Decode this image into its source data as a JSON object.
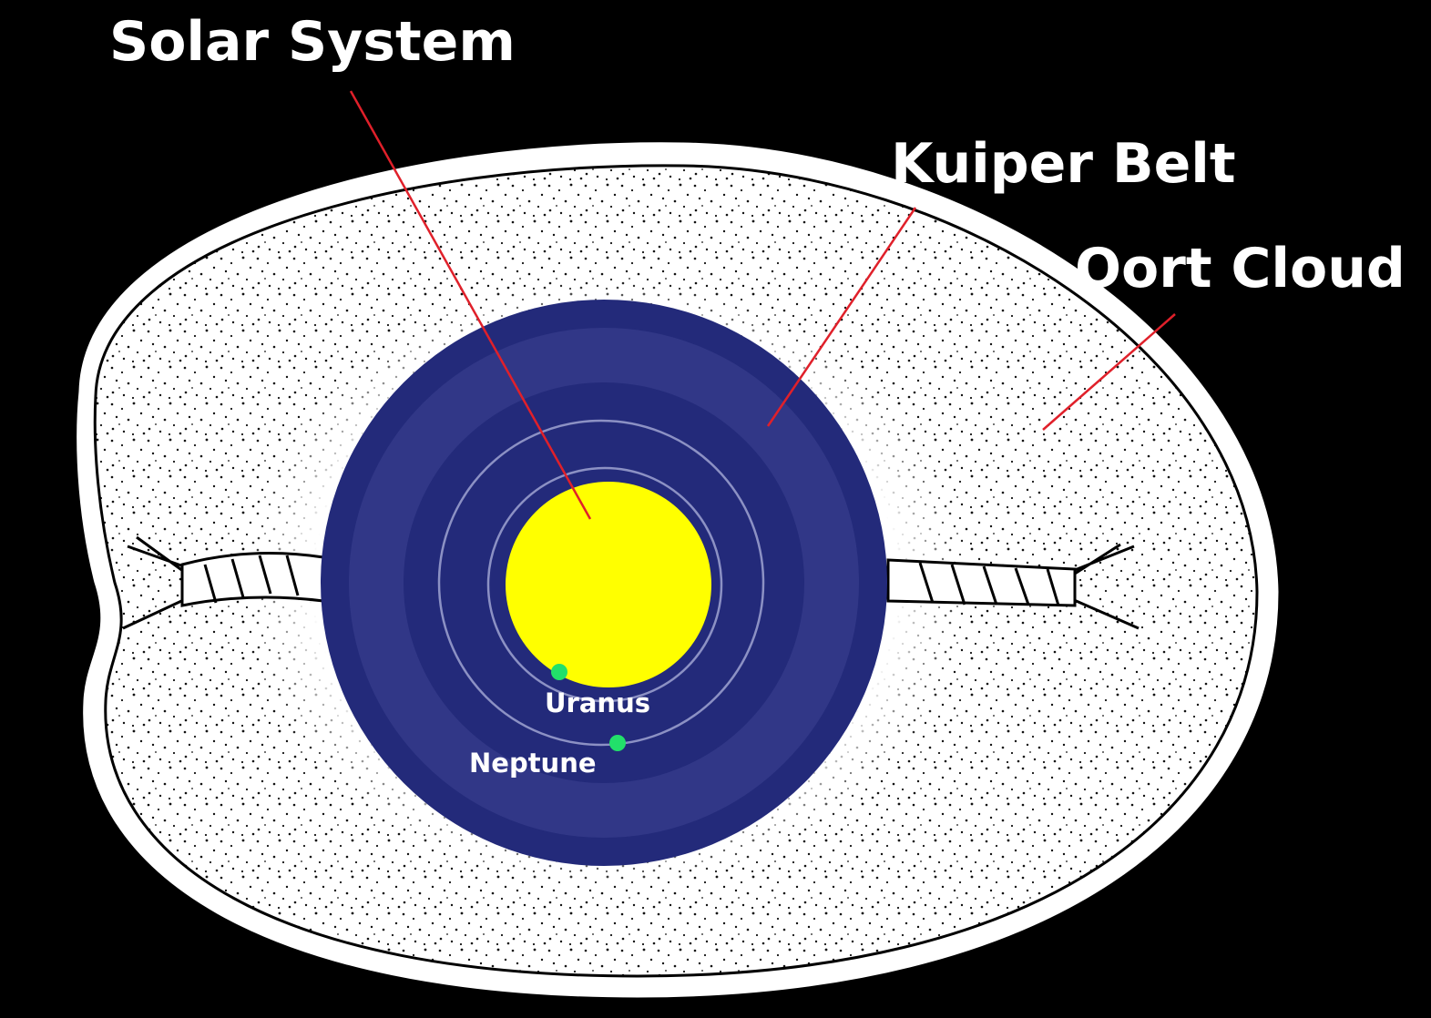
{
  "callouts": [
    {
      "label": "Solar System"
    },
    {
      "label": "Kuiper Belt"
    },
    {
      "label": "Oort Cloud"
    }
  ],
  "planets": [
    {
      "label": "Uranus"
    },
    {
      "label": "Neptune"
    }
  ]
}
